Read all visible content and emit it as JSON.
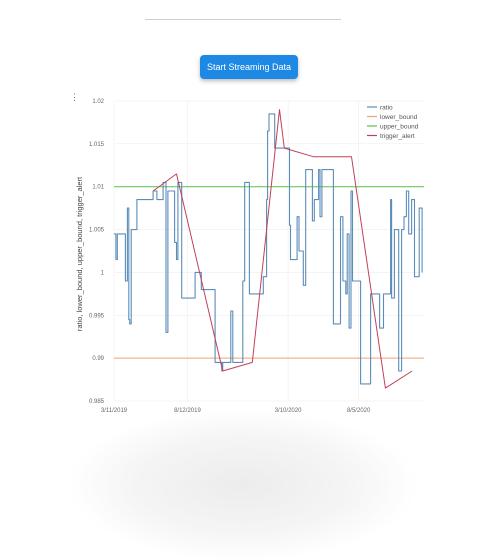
{
  "stream_button": {
    "label": "Start Streaming Data"
  },
  "colors": {
    "button": "#1e88e5",
    "ratio": "#5b8db8",
    "lower_bound": "#f0a070",
    "upper_bound": "#5cbf48",
    "trigger_alert": "#c0405a"
  },
  "chart_data": {
    "type": "line",
    "ylabel": "ratio, lower_bound, upper_bound, trigger_alert",
    "ylim": [
      0.985,
      1.02
    ],
    "yticks": [
      "1.02",
      "1.015",
      "1.01",
      "1.005",
      "1",
      "0.995",
      "0.99",
      "0.985"
    ],
    "xlim": [
      0,
      650
    ],
    "xticks": [
      {
        "label": "3/11/2019",
        "x": 0
      },
      {
        "label": "8/12/2019",
        "x": 154
      },
      {
        "label": "3/10/2020",
        "x": 365
      },
      {
        "label": "8/5/2020",
        "x": 513
      }
    ],
    "legend_position": "top-right",
    "series": [
      {
        "name": "ratio",
        "points": [
          [
            0,
            1.0045
          ],
          [
            4,
            1.0045
          ],
          [
            4,
            1.0015
          ],
          [
            7,
            1.0015
          ],
          [
            7,
            1.0045
          ],
          [
            24,
            1.0045
          ],
          [
            24,
            0.999
          ],
          [
            28,
            0.999
          ],
          [
            28,
            1.0075
          ],
          [
            31,
            1.0075
          ],
          [
            31,
            0.9945
          ],
          [
            33,
            0.9945
          ],
          [
            33,
            0.994
          ],
          [
            36,
            0.994
          ],
          [
            36,
            1.005
          ],
          [
            48,
            1.005
          ],
          [
            48,
            1.0085
          ],
          [
            82,
            1.0085
          ],
          [
            82,
            1.0095
          ],
          [
            90,
            1.0095
          ],
          [
            90,
            1.0085
          ],
          [
            103,
            1.0085
          ],
          [
            103,
            1.0105
          ],
          [
            109,
            1.0105
          ],
          [
            109,
            0.993
          ],
          [
            113,
            0.993
          ],
          [
            113,
            1.0095
          ],
          [
            127,
            1.0095
          ],
          [
            127,
            1.0035
          ],
          [
            131,
            1.0035
          ],
          [
            131,
            1.0015
          ],
          [
            134,
            1.0015
          ],
          [
            134,
            1.0105
          ],
          [
            142,
            1.0105
          ],
          [
            142,
            0.997
          ],
          [
            170,
            0.997
          ],
          [
            170,
            1
          ],
          [
            183,
            1
          ],
          [
            183,
            0.998
          ],
          [
            212,
            0.998
          ],
          [
            212,
            0.9895
          ],
          [
            226,
            0.9895
          ],
          [
            226,
            0.9885
          ],
          [
            228,
            0.9885
          ],
          [
            228,
            0.9895
          ],
          [
            245,
            0.9895
          ],
          [
            245,
            0.9955
          ],
          [
            249,
            0.9955
          ],
          [
            249,
            0.9895
          ],
          [
            270,
            0.9895
          ],
          [
            270,
            0.999
          ],
          [
            274,
            0.999
          ],
          [
            274,
            1.0105
          ],
          [
            284,
            1.0105
          ],
          [
            284,
            0.9975
          ],
          [
            313,
            0.9975
          ],
          [
            313,
            0.9995
          ],
          [
            320,
            0.9995
          ],
          [
            320,
            1.0085
          ],
          [
            322,
            1.0085
          ],
          [
            322,
            1.0165
          ],
          [
            325,
            1.0165
          ],
          [
            325,
            1.0185
          ],
          [
            337,
            1.0185
          ],
          [
            337,
            1.0145
          ],
          [
            368,
            1.0145
          ],
          [
            368,
            1.0055
          ],
          [
            370,
            1.0055
          ],
          [
            370,
            1.0015
          ],
          [
            384,
            1.0015
          ],
          [
            384,
            1.0065
          ],
          [
            388,
            1.0065
          ],
          [
            388,
            1.0025
          ],
          [
            397,
            1.0025
          ],
          [
            397,
            0.9985
          ],
          [
            402,
            0.9985
          ],
          [
            402,
            1.012
          ],
          [
            416,
            1.012
          ],
          [
            416,
            1.006
          ],
          [
            420,
            1.006
          ],
          [
            420,
            1.0085
          ],
          [
            429,
            1.0085
          ],
          [
            429,
            1.012
          ],
          [
            432,
            1.012
          ],
          [
            432,
            1.0065
          ],
          [
            436,
            1.0065
          ],
          [
            436,
            1.012
          ],
          [
            460,
            1.012
          ],
          [
            460,
            0.994
          ],
          [
            475,
            0.994
          ],
          [
            475,
            1.0065
          ],
          [
            480,
            1.0065
          ],
          [
            480,
            0.999
          ],
          [
            486,
            0.999
          ],
          [
            486,
            0.9975
          ],
          [
            489,
            0.9975
          ],
          [
            489,
            1.0045
          ],
          [
            493,
            1.0045
          ],
          [
            493,
            0.9935
          ],
          [
            497,
            0.9935
          ],
          [
            497,
            1.0095
          ],
          [
            500,
            1.0095
          ],
          [
            500,
            0.999
          ],
          [
            517,
            0.999
          ],
          [
            517,
            0.987
          ],
          [
            538,
            0.987
          ],
          [
            538,
            0.9975
          ],
          [
            557,
            0.9975
          ],
          [
            557,
            0.9935
          ],
          [
            565,
            0.9935
          ],
          [
            565,
            0.9975
          ],
          [
            580,
            0.9975
          ],
          [
            580,
            1.0085
          ],
          [
            582,
            1.0085
          ],
          [
            582,
            0.997
          ],
          [
            588,
            0.997
          ],
          [
            588,
            1.005
          ],
          [
            597,
            1.005
          ],
          [
            597,
            0.9885
          ],
          [
            603,
            0.9885
          ],
          [
            603,
            1.005
          ],
          [
            608,
            1.005
          ],
          [
            608,
            1.0065
          ],
          [
            613,
            1.0065
          ],
          [
            613,
            1.0095
          ],
          [
            618,
            1.0095
          ],
          [
            618,
            1.0045
          ],
          [
            624,
            1.0045
          ],
          [
            624,
            1.0085
          ],
          [
            630,
            1.0085
          ],
          [
            630,
            0.9995
          ],
          [
            640,
            0.9995
          ],
          [
            640,
            1.0075
          ],
          [
            646,
            1.0075
          ],
          [
            646,
            1
          ]
        ]
      },
      {
        "name": "lower_bound",
        "points": [
          [
            0,
            0.99
          ],
          [
            650,
            0.99
          ]
        ]
      },
      {
        "name": "upper_bound",
        "points": [
          [
            0,
            1.01
          ],
          [
            650,
            1.01
          ]
        ]
      },
      {
        "name": "trigger_alert",
        "points": [
          [
            82,
            1.0095
          ],
          [
            131,
            1.0115
          ],
          [
            228,
            0.9885
          ],
          [
            290,
            0.9895
          ],
          [
            347,
            1.019
          ],
          [
            357,
            1.0145
          ],
          [
            418,
            1.0135
          ],
          [
            498,
            1.0135
          ],
          [
            569,
            0.9865
          ],
          [
            625,
            0.9885
          ]
        ]
      }
    ]
  }
}
